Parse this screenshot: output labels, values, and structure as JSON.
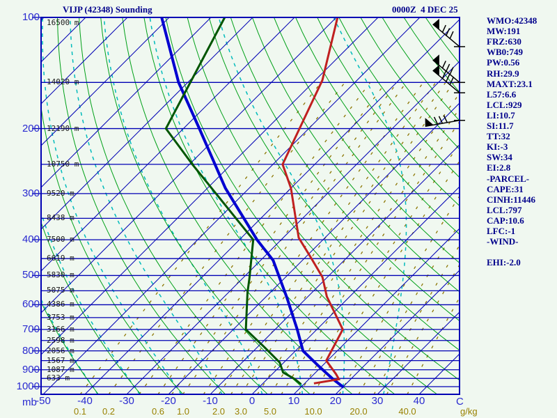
{
  "header": {
    "title": "VIJP (42348) Sounding",
    "datetime": "0000Z  4 DEC 25"
  },
  "indices_panel": {
    "lines": [
      "WMO:42348",
      "MW:191",
      "FRZ:630",
      "WB0:749",
      "PW:0.56",
      "RH:29.9",
      "MAXT:23.1",
      "L57:6.6",
      "LCL:929",
      "LI:10.7",
      "SI:11.7",
      "TT:32",
      "KI:-3",
      "SW:34",
      "EI:2.8",
      "-PARCEL-",
      "CAPE:31",
      "CINH:11446",
      "LCL:797",
      "CAP:10.6",
      "LFC:-1",
      "-WIND-",
      "",
      "EHI:-2.0"
    ]
  },
  "axes": {
    "pressure_unit": "mb",
    "temp_unit": "C",
    "mixing_unit": "g/kg",
    "pressure_ticks": [
      100,
      200,
      300,
      400,
      500,
      600,
      700,
      800,
      900,
      1000
    ],
    "temp_ticks": [
      -50,
      -40,
      -30,
      -20,
      -10,
      0,
      10,
      20,
      30,
      40
    ],
    "mixing_tick_labels": [
      "0.1",
      "0.2",
      "0.6",
      "1.0",
      "2.0",
      "3.0",
      "5.0",
      "10.0",
      "20.0",
      "40.0"
    ],
    "mixing_tick_values": [
      0.1,
      0.2,
      0.6,
      1.0,
      2.0,
      3.0,
      5.0,
      10.0,
      20.0,
      40.0
    ]
  },
  "altitude_labels": [
    {
      "p": 100,
      "text": "16500 m"
    },
    {
      "p": 150,
      "text": "14020 m"
    },
    {
      "p": 200,
      "text": "12190 m"
    },
    {
      "p": 250,
      "text": "10750 m"
    },
    {
      "p": 300,
      "text": "9520 m"
    },
    {
      "p": 350,
      "text": "8438 m"
    },
    {
      "p": 400,
      "text": "7500 m"
    },
    {
      "p": 450,
      "text": "6619 m"
    },
    {
      "p": 500,
      "text": "5830 m"
    },
    {
      "p": 550,
      "text": "5075 m"
    },
    {
      "p": 600,
      "text": "4386 m"
    },
    {
      "p": 650,
      "text": "3753 m"
    },
    {
      "p": 700,
      "text": "3166 m"
    },
    {
      "p": 750,
      "text": "2598 m"
    },
    {
      "p": 800,
      "text": "2056 m"
    },
    {
      "p": 850,
      "text": "1567 m"
    },
    {
      "p": 900,
      "text": "1087 m"
    },
    {
      "p": 950,
      "text": "633 m"
    }
  ],
  "chart_data": {
    "type": "skewt-log-p-sounding",
    "title": "VIJP (42348) Sounding",
    "valid": "0000Z 4 DEC 25",
    "pressure_range_mb": [
      100,
      1050
    ],
    "temp_axis_range_c": [
      -50,
      40
    ],
    "isotherms_c": {
      "min": -140,
      "max": 40,
      "step": 10
    },
    "dry_adiabats_theta_c": {
      "min": -40,
      "max": 160,
      "step": 10
    },
    "moist_adiabats_thetaw_c": {
      "min": -40,
      "max": 30,
      "step": 10
    },
    "mixing_ratio_lines_gkg": [
      0.1,
      0.2,
      0.4,
      0.6,
      0.8,
      1.0,
      1.5,
      2.0,
      2.5,
      3.0,
      4.0,
      5.0,
      6.0,
      8.0,
      10.0,
      15.0,
      20.0,
      25.0,
      30.0,
      40.0
    ],
    "series": {
      "temperature": {
        "name": "Temperature",
        "points": [
          [
            100,
            -69.7
          ],
          [
            148,
            -58.3
          ],
          [
            250,
            -47.7
          ],
          [
            290,
            -40.0
          ],
          [
            395,
            -26.3
          ],
          [
            448,
            -18.5
          ],
          [
            505,
            -11.2
          ],
          [
            570,
            -5.5
          ],
          [
            700,
            6.2
          ],
          [
            850,
            9.7
          ],
          [
            925,
            15.3
          ],
          [
            955,
            17.2
          ],
          [
            980,
            12.2
          ]
        ]
      },
      "dewpoint": {
        "name": "Dewpoint",
        "points": [
          [
            100,
            -96.7
          ],
          [
            200,
            -84.2
          ],
          [
            250,
            -69.3
          ],
          [
            400,
            -36.7
          ],
          [
            510,
            -28.3
          ],
          [
            555,
            -25.5
          ],
          [
            700,
            -17.0
          ],
          [
            780,
            -8.5
          ],
          [
            860,
            -1.0
          ],
          [
            915,
            2.2
          ],
          [
            955,
            6.7
          ],
          [
            985,
            9.3
          ]
        ]
      },
      "parcel": {
        "name": "Parcel",
        "points": [
          [
            100,
            -111.8
          ],
          [
            150,
            -92.2
          ],
          [
            200,
            -76.2
          ],
          [
            290,
            -55.7
          ],
          [
            400,
            -35.8
          ],
          [
            455,
            -27.0
          ],
          [
            575,
            -14.7
          ],
          [
            700,
            -4.7
          ],
          [
            800,
            1.8
          ],
          [
            875,
            8.8
          ],
          [
            955,
            15.8
          ],
          [
            1005,
            20.3
          ]
        ]
      }
    },
    "wind_barbs": [
      {
        "pressure_mb": 120,
        "speed_kt": 80,
        "angle_deg": -140
      },
      {
        "pressure_mb": 150,
        "speed_kt": 80,
        "angle_deg": -140
      },
      {
        "pressure_mb": 160,
        "speed_kt": 80,
        "angle_deg": -140
      },
      {
        "pressure_mb": 190,
        "speed_kt": 80,
        "angle_deg": 170
      }
    ]
  },
  "colors": {
    "background": "#f0f8f0",
    "frame": "#0000b4",
    "isotherm": "#0000b4",
    "pressure_line": "#0000b4",
    "dry_adiabat": "#00a018",
    "moist_adiabat": "#00bbbb",
    "mixing_ratio": "#8b7500",
    "temperature_curve": "#c02020",
    "dewpoint_curve": "#005500",
    "parcel_curve": "#0000d0",
    "axis_label_blue": "#2a2ad0",
    "mixing_label": "#998100",
    "altitude_label": "#1a1a1a",
    "panel_text": "#00008b",
    "wind_barb": "#000000"
  }
}
